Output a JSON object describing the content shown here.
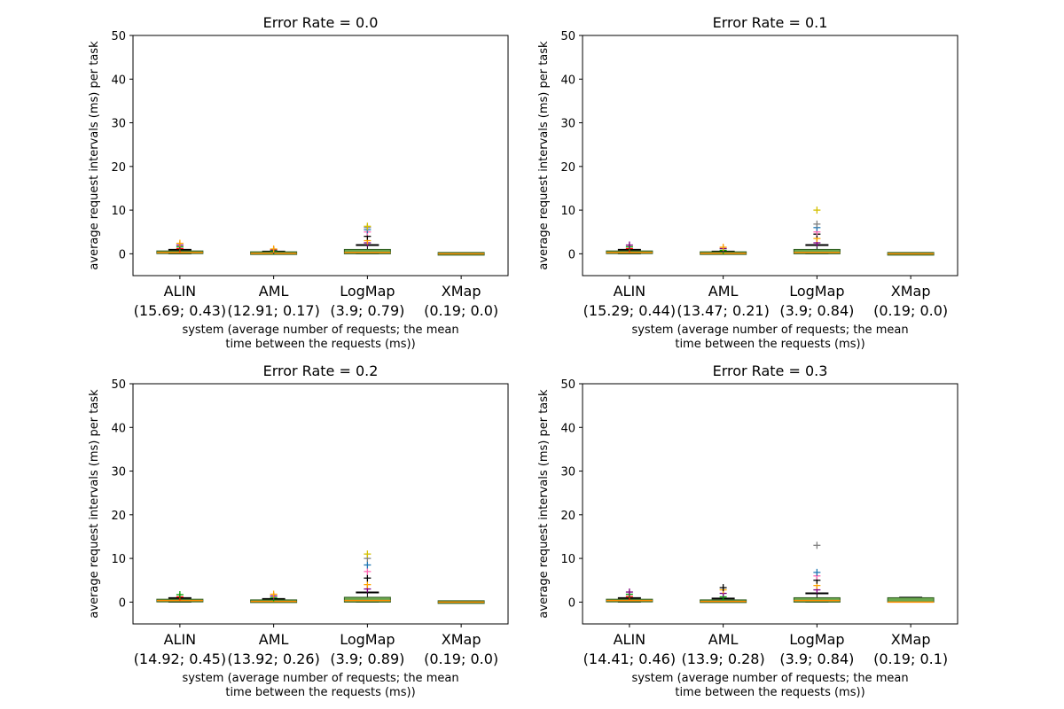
{
  "chart_data": [
    {
      "type": "box",
      "title": "Error Rate = 0.0",
      "ylabel": "average request intervals (ms) per task",
      "xlabel": [
        "system (average number of requests; the mean",
        "time between the requests (ms))"
      ],
      "ylim": [
        -5,
        50
      ],
      "yticks": [
        "0",
        "10",
        "20",
        "30",
        "40",
        "50"
      ],
      "grid": false,
      "categories": [
        {
          "name": "ALIN",
          "sub": "(15.69; 0.43)"
        },
        {
          "name": "AML",
          "sub": "(12.91; 0.17)"
        },
        {
          "name": "LogMap",
          "sub": "(3.9; 0.79)"
        },
        {
          "name": "XMap",
          "sub": "(0.19; 0.0)"
        }
      ],
      "boxes": [
        {
          "q1": 0.1,
          "median": 0.3,
          "q3": 0.6,
          "whislo": 0.0,
          "whishi": 0.9,
          "fliers": [
            1.2,
            1.6,
            2.0,
            2.4
          ]
        },
        {
          "q1": 0.0,
          "median": 0.1,
          "q3": 0.3,
          "whislo": 0.0,
          "whishi": 0.5,
          "fliers": [
            0.7,
            0.9,
            1.1
          ]
        },
        {
          "q1": 0.0,
          "median": 0.3,
          "q3": 1.0,
          "whislo": 0.0,
          "whishi": 2.0,
          "fliers": [
            2.5,
            3.0,
            4.0,
            5.0,
            5.5,
            6.0,
            6.3
          ]
        },
        {
          "q1": 0.0,
          "median": 0.0,
          "q3": 0.0,
          "whislo": 0.0,
          "whishi": 0.0,
          "fliers": []
        }
      ]
    },
    {
      "type": "box",
      "title": "Error Rate = 0.1",
      "ylabel": "average request intervals (ms) per task",
      "xlabel": [
        "system (average number of requests; the mean",
        "time between the requests (ms))"
      ],
      "ylim": [
        -5,
        50
      ],
      "yticks": [
        "0",
        "10",
        "20",
        "30",
        "40",
        "50"
      ],
      "grid": false,
      "categories": [
        {
          "name": "ALIN",
          "sub": "(15.29; 0.44)"
        },
        {
          "name": "AML",
          "sub": "(13.47; 0.21)"
        },
        {
          "name": "LogMap",
          "sub": "(3.9; 0.84)"
        },
        {
          "name": "XMap",
          "sub": "(0.19; 0.0)"
        }
      ],
      "boxes": [
        {
          "q1": 0.1,
          "median": 0.3,
          "q3": 0.6,
          "whislo": 0.0,
          "whishi": 0.9,
          "fliers": [
            1.2,
            1.6,
            2.0
          ]
        },
        {
          "q1": 0.0,
          "median": 0.1,
          "q3": 0.3,
          "whislo": 0.0,
          "whishi": 0.5,
          "fliers": [
            0.8,
            1.2,
            1.5
          ]
        },
        {
          "q1": 0.0,
          "median": 0.3,
          "q3": 1.0,
          "whislo": 0.0,
          "whishi": 2.0,
          "fliers": [
            2.5,
            3.5,
            4.5,
            5.0,
            6.0,
            6.8,
            10.0
          ]
        },
        {
          "q1": 0.0,
          "median": 0.0,
          "q3": 0.0,
          "whislo": 0.0,
          "whishi": 0.0,
          "fliers": []
        }
      ]
    },
    {
      "type": "box",
      "title": "Error Rate = 0.2",
      "ylabel": "average request intervals (ms) per task",
      "xlabel": [
        "system (average number of requests; the mean",
        "time between the requests (ms))"
      ],
      "ylim": [
        -5,
        50
      ],
      "yticks": [
        "0",
        "10",
        "20",
        "30",
        "40",
        "50"
      ],
      "grid": false,
      "categories": [
        {
          "name": "ALIN",
          "sub": "(14.92; 0.45)"
        },
        {
          "name": "AML",
          "sub": "(13.92; 0.26)"
        },
        {
          "name": "LogMap",
          "sub": "(3.9; 0.89)"
        },
        {
          "name": "XMap",
          "sub": "(0.19; 0.0)"
        }
      ],
      "boxes": [
        {
          "q1": 0.1,
          "median": 0.35,
          "q3": 0.6,
          "whislo": 0.0,
          "whishi": 0.9,
          "fliers": [
            1.2,
            1.7
          ]
        },
        {
          "q1": 0.0,
          "median": 0.15,
          "q3": 0.4,
          "whislo": 0.0,
          "whishi": 0.7,
          "fliers": [
            1.0,
            1.4,
            1.8
          ]
        },
        {
          "q1": 0.0,
          "median": 0.35,
          "q3": 1.1,
          "whislo": 0.0,
          "whishi": 2.2,
          "fliers": [
            3.0,
            4.0,
            5.5,
            7.0,
            8.5,
            10.0,
            11.0
          ]
        },
        {
          "q1": 0.0,
          "median": 0.0,
          "q3": 0.0,
          "whislo": 0.0,
          "whishi": 0.0,
          "fliers": []
        }
      ]
    },
    {
      "type": "box",
      "title": "Error Rate = 0.3",
      "ylabel": "average request intervals (ms) per task",
      "xlabel": [
        "system (average number of requests; the mean",
        "time between the requests (ms))"
      ],
      "ylim": [
        -5,
        50
      ],
      "yticks": [
        "0",
        "10",
        "20",
        "30",
        "40",
        "50"
      ],
      "grid": false,
      "categories": [
        {
          "name": "ALIN",
          "sub": "(14.41; 0.46)"
        },
        {
          "name": "AML",
          "sub": "(13.9; 0.28)"
        },
        {
          "name": "LogMap",
          "sub": "(3.9; 0.84)"
        },
        {
          "name": "XMap",
          "sub": "(0.19; 0.1)"
        }
      ],
      "boxes": [
        {
          "q1": 0.1,
          "median": 0.35,
          "q3": 0.6,
          "whislo": 0.0,
          "whishi": 0.9,
          "fliers": [
            1.3,
            1.8,
            2.3
          ]
        },
        {
          "q1": 0.0,
          "median": 0.15,
          "q3": 0.4,
          "whislo": 0.0,
          "whishi": 0.8,
          "fliers": [
            1.2,
            2.0,
            2.8,
            3.3
          ]
        },
        {
          "q1": 0.0,
          "median": 0.35,
          "q3": 1.0,
          "whislo": 0.0,
          "whishi": 2.0,
          "fliers": [
            2.8,
            3.8,
            5.0,
            6.0,
            6.8,
            13.0
          ]
        },
        {
          "q1": 0.0,
          "median": 0.0,
          "q3": 1.0,
          "whislo": 0.0,
          "whishi": 1.0,
          "fliers": []
        }
      ]
    }
  ],
  "colors": {
    "box_fill": "#6aa84f",
    "box_edge": "#2f5d1f",
    "median": "#ff8c00",
    "whisker": "#000000",
    "flier_palette": [
      "#ff0000",
      "#00a000",
      "#800080",
      "#ffa500",
      "#000000",
      "#ff69b4",
      "#1f77b4",
      "#808080",
      "#d4c000"
    ]
  }
}
